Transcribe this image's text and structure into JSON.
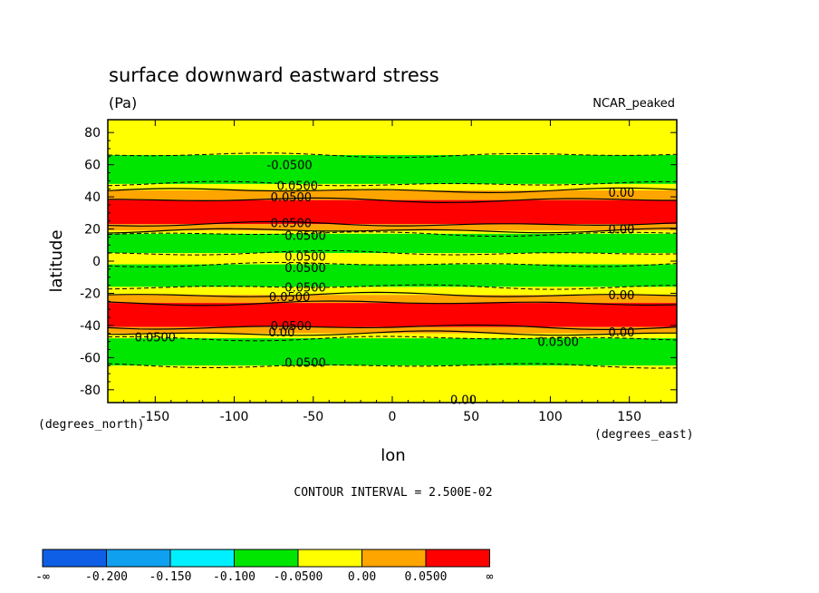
{
  "chart_data": {
    "type": "heatmap",
    "title": "surface downward eastward stress",
    "units": "(Pa)",
    "dataset": "NCAR_peaked",
    "xlabel": "lon",
    "ylabel": "latitude",
    "x_units_label": "(degrees_east)",
    "y_units_label": "(degrees_north)",
    "xlim": [
      -180,
      180
    ],
    "ylim": [
      -88,
      88
    ],
    "x_ticks": [
      -150,
      -100,
      -50,
      0,
      50,
      100,
      150
    ],
    "x_tick_labels": [
      "-150",
      "-100",
      "-50",
      "0",
      "50",
      "100",
      "150"
    ],
    "y_ticks": [
      -80,
      -60,
      -40,
      -20,
      0,
      20,
      40,
      60,
      80
    ],
    "y_tick_labels": [
      "-80",
      "-60",
      "-40",
      "-20",
      "0",
      "20",
      "40",
      "60",
      "80"
    ],
    "contour_interval_text": "CONTOUR INTERVAL = 2.500E-02",
    "colorbar": {
      "levels": [
        "-∞",
        "-0.200",
        "-0.150",
        "-0.100",
        "-0.0500",
        "0.00",
        "0.0500",
        "∞"
      ],
      "colors": [
        "#0f5fe6",
        "#0fa0f0",
        "#00f0ff",
        "#00e600",
        "#ffff00",
        "#ffa500",
        "#ff0000"
      ]
    },
    "bands": [
      {
        "lat_from": 88,
        "lat_to": 66,
        "value_class": "yellow"
      },
      {
        "lat_from": 66,
        "lat_to": 48,
        "value_class": "green"
      },
      {
        "lat_from": 48,
        "lat_to": 44,
        "value_class": "yellow"
      },
      {
        "lat_from": 44,
        "lat_to": 38,
        "value_class": "orange"
      },
      {
        "lat_from": 38,
        "lat_to": 23,
        "value_class": "red"
      },
      {
        "lat_from": 23,
        "lat_to": 19,
        "value_class": "orange"
      },
      {
        "lat_from": 19,
        "lat_to": 17,
        "value_class": "yellow"
      },
      {
        "lat_from": 17,
        "lat_to": 5,
        "value_class": "green"
      },
      {
        "lat_from": 5,
        "lat_to": -2,
        "value_class": "yellow"
      },
      {
        "lat_from": -2,
        "lat_to": -16,
        "value_class": "green"
      },
      {
        "lat_from": -16,
        "lat_to": -21,
        "value_class": "yellow"
      },
      {
        "lat_from": -21,
        "lat_to": -26,
        "value_class": "orange"
      },
      {
        "lat_from": -26,
        "lat_to": -41,
        "value_class": "red"
      },
      {
        "lat_from": -41,
        "lat_to": -45,
        "value_class": "orange"
      },
      {
        "lat_from": -45,
        "lat_to": -48,
        "value_class": "yellow"
      },
      {
        "lat_from": -48,
        "lat_to": -65,
        "value_class": "green"
      },
      {
        "lat_from": -65,
        "lat_to": -88,
        "value_class": "yellow"
      }
    ],
    "contour_labels": [
      {
        "text": "-0.0500",
        "lon": -65,
        "lat": 60
      },
      {
        "text": "0.0500",
        "lon": -60,
        "lat": 47
      },
      {
        "text": "0.0500",
        "lon": -64,
        "lat": 40
      },
      {
        "text": "0.00",
        "lon": 145,
        "lat": 43
      },
      {
        "text": "0.0500",
        "lon": -64,
        "lat": 24
      },
      {
        "text": "0.0500",
        "lon": -55,
        "lat": 16
      },
      {
        "text": "0.00",
        "lon": 145,
        "lat": 20
      },
      {
        "text": "0.0500",
        "lon": -55,
        "lat": 3
      },
      {
        "text": "0.0500",
        "lon": -55,
        "lat": -4
      },
      {
        "text": "0.0500",
        "lon": -55,
        "lat": -16
      },
      {
        "text": "0.0500",
        "lon": -65,
        "lat": -22
      },
      {
        "text": "0.00",
        "lon": 145,
        "lat": -21
      },
      {
        "text": "0.0500",
        "lon": -64,
        "lat": -40
      },
      {
        "text": "0.00",
        "lon": -70,
        "lat": -44
      },
      {
        "text": "0.00",
        "lon": 145,
        "lat": -44
      },
      {
        "text": "0.0500",
        "lon": -150,
        "lat": -47
      },
      {
        "text": "0.0500",
        "lon": 105,
        "lat": -50
      },
      {
        "text": "0.0500",
        "lon": -55,
        "lat": -63
      },
      {
        "text": "0.00",
        "lon": 45,
        "lat": -86
      }
    ]
  }
}
